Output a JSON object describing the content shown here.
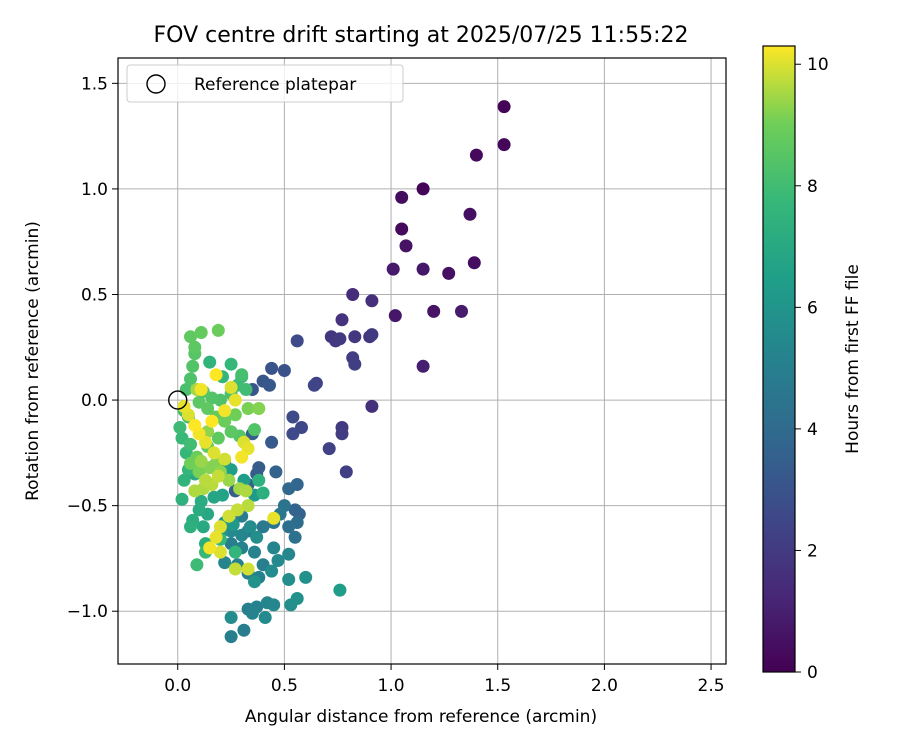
{
  "chart_data": {
    "type": "scatter",
    "title": "FOV centre drift starting at 2025/07/25 11:55:22",
    "xlabel": "Angular distance from reference (arcmin)",
    "ylabel": "Rotation from reference (arcmin)",
    "xlim": [
      -0.28,
      2.57
    ],
    "ylim": [
      -1.25,
      1.62
    ],
    "xticks": [
      {
        "value": 0.0,
        "label": "0.0"
      },
      {
        "value": 0.5,
        "label": "0.5"
      },
      {
        "value": 1.0,
        "label": "1.0"
      },
      {
        "value": 1.5,
        "label": "1.5"
      },
      {
        "value": 2.0,
        "label": "2.0"
      },
      {
        "value": 2.5,
        "label": "2.5"
      }
    ],
    "yticks": [
      {
        "value": -1.0,
        "label": "−1.0"
      },
      {
        "value": -0.5,
        "label": "−0.5"
      },
      {
        "value": 0.0,
        "label": "0.0"
      },
      {
        "value": 0.5,
        "label": "0.5"
      },
      {
        "value": 1.0,
        "label": "1.0"
      },
      {
        "value": 1.5,
        "label": "1.5"
      }
    ],
    "grid": true,
    "legend": {
      "placement": "top-left",
      "entries": [
        {
          "label": "Reference platepar",
          "marker": "open-circle"
        }
      ]
    },
    "reference_point": {
      "x": 0.0,
      "y": 0.0
    },
    "colorbar": {
      "label": "Hours from first FF file",
      "colormap": "viridis",
      "range": [
        0,
        10.3
      ],
      "ticks": [
        {
          "value": 0,
          "label": "0"
        },
        {
          "value": 2,
          "label": "2"
        },
        {
          "value": 4,
          "label": "4"
        },
        {
          "value": 6,
          "label": "6"
        },
        {
          "value": 8,
          "label": "8"
        },
        {
          "value": 10,
          "label": "10"
        }
      ]
    },
    "points": [
      [
        1.53,
        1.39,
        0.1
      ],
      [
        1.53,
        1.21,
        0.2
      ],
      [
        1.4,
        1.16,
        0.3
      ],
      [
        1.15,
        1.0,
        0.1
      ],
      [
        1.05,
        0.96,
        0.4
      ],
      [
        1.37,
        0.88,
        0.5
      ],
      [
        1.05,
        0.81,
        0.3
      ],
      [
        1.07,
        0.73,
        0.6
      ],
      [
        1.39,
        0.65,
        0.4
      ],
      [
        1.15,
        0.62,
        0.7
      ],
      [
        1.27,
        0.6,
        0.5
      ],
      [
        1.01,
        0.62,
        0.8
      ],
      [
        1.2,
        0.42,
        0.6
      ],
      [
        1.33,
        0.42,
        0.9
      ],
      [
        1.02,
        0.4,
        0.7
      ],
      [
        1.15,
        0.16,
        1.0
      ],
      [
        0.82,
        0.5,
        1.5
      ],
      [
        0.91,
        0.47,
        1.6
      ],
      [
        0.77,
        0.38,
        1.7
      ],
      [
        0.72,
        0.3,
        1.8
      ],
      [
        0.74,
        0.28,
        1.9
      ],
      [
        0.76,
        0.29,
        2.0
      ],
      [
        0.83,
        0.3,
        1.9
      ],
      [
        0.9,
        0.3,
        1.8
      ],
      [
        0.91,
        0.31,
        2.0
      ],
      [
        0.82,
        0.2,
        2.1
      ],
      [
        0.83,
        0.17,
        2.2
      ],
      [
        0.56,
        0.28,
        2.6
      ],
      [
        0.65,
        0.08,
        2.3
      ],
      [
        0.64,
        0.07,
        2.4
      ],
      [
        0.91,
        -0.03,
        1.6
      ],
      [
        0.77,
        -0.13,
        2.0
      ],
      [
        0.77,
        -0.16,
        2.1
      ],
      [
        0.71,
        -0.23,
        2.3
      ],
      [
        0.79,
        -0.34,
        2.2
      ],
      [
        0.58,
        -0.13,
        2.5
      ],
      [
        0.54,
        -0.08,
        2.7
      ],
      [
        0.54,
        -0.16,
        2.6
      ],
      [
        0.5,
        0.14,
        2.9
      ],
      [
        0.44,
        0.15,
        3.0
      ],
      [
        0.4,
        0.09,
        3.1
      ],
      [
        0.43,
        0.07,
        3.2
      ],
      [
        0.35,
        0.05,
        3.1
      ],
      [
        0.44,
        -0.2,
        3.3
      ],
      [
        0.35,
        -0.16,
        3.5
      ],
      [
        0.46,
        -0.34,
        3.6
      ],
      [
        0.38,
        -0.32,
        3.4
      ],
      [
        0.37,
        -0.35,
        3.3
      ],
      [
        0.33,
        -0.4,
        3.7
      ],
      [
        0.27,
        -0.43,
        3.5
      ],
      [
        0.52,
        -0.42,
        3.9
      ],
      [
        0.56,
        -0.4,
        3.8
      ],
      [
        0.55,
        -0.52,
        3.7
      ],
      [
        0.57,
        -0.54,
        3.6
      ],
      [
        0.56,
        -0.58,
        4.1
      ],
      [
        0.52,
        -0.6,
        4.2
      ],
      [
        0.55,
        -0.65,
        4.3
      ],
      [
        0.5,
        -0.5,
        4.4
      ],
      [
        0.48,
        -0.54,
        4.6
      ],
      [
        0.45,
        -0.58,
        4.5
      ],
      [
        0.4,
        -0.6,
        4.7
      ],
      [
        0.33,
        -0.62,
        4.8
      ],
      [
        0.3,
        -0.55,
        4.9
      ],
      [
        0.25,
        -0.68,
        5.0
      ],
      [
        0.3,
        -0.7,
        5.1
      ],
      [
        0.36,
        -0.72,
        5.2
      ],
      [
        0.45,
        -0.7,
        5.3
      ],
      [
        0.52,
        -0.73,
        5.4
      ],
      [
        0.47,
        -0.76,
        5.5
      ],
      [
        0.4,
        -0.78,
        5.0
      ],
      [
        0.33,
        -0.82,
        4.9
      ],
      [
        0.38,
        -0.84,
        5.1
      ],
      [
        0.44,
        -0.81,
        5.6
      ],
      [
        0.52,
        -0.85,
        5.7
      ],
      [
        0.6,
        -0.84,
        5.8
      ],
      [
        0.36,
        -0.86,
        5.9
      ],
      [
        0.28,
        -0.78,
        5.2
      ],
      [
        0.22,
        -0.77,
        5.3
      ],
      [
        0.3,
        -0.64,
        5.4
      ],
      [
        0.25,
        -0.62,
        5.5
      ],
      [
        0.34,
        -0.6,
        5.6
      ],
      [
        0.37,
        -0.65,
        5.7
      ],
      [
        0.22,
        -0.58,
        6.0
      ],
      [
        0.2,
        -0.63,
        6.1
      ],
      [
        0.26,
        -0.59,
        6.2
      ],
      [
        0.33,
        -0.99,
        5.0
      ],
      [
        0.37,
        -0.98,
        5.1
      ],
      [
        0.35,
        -1.01,
        5.2
      ],
      [
        0.42,
        -0.96,
        5.3
      ],
      [
        0.45,
        -0.97,
        5.4
      ],
      [
        0.41,
        -1.03,
        5.5
      ],
      [
        0.25,
        -1.03,
        5.6
      ],
      [
        0.31,
        -1.09,
        4.9
      ],
      [
        0.25,
        -1.12,
        5.0
      ],
      [
        0.53,
        -0.97,
        5.7
      ],
      [
        0.56,
        -0.94,
        5.8
      ],
      [
        0.76,
        -0.9,
        6.4
      ],
      [
        0.36,
        -0.45,
        6.3
      ],
      [
        0.31,
        -0.38,
        6.4
      ],
      [
        0.25,
        -0.33,
        6.5
      ],
      [
        0.22,
        -0.3,
        6.6
      ],
      [
        0.21,
        -0.45,
        6.7
      ],
      [
        0.17,
        -0.46,
        6.8
      ],
      [
        0.14,
        -0.54,
        6.9
      ],
      [
        0.12,
        -0.6,
        7.0
      ],
      [
        0.1,
        -0.52,
        7.1
      ],
      [
        0.07,
        -0.57,
        7.2
      ],
      [
        0.06,
        -0.6,
        7.3
      ],
      [
        0.02,
        -0.47,
        7.4
      ],
      [
        0.03,
        -0.38,
        7.5
      ],
      [
        0.05,
        -0.33,
        7.6
      ],
      [
        0.04,
        -0.25,
        7.7
      ],
      [
        0.02,
        -0.18,
        7.8
      ],
      [
        0.01,
        -0.13,
        7.9
      ],
      [
        0.05,
        -0.08,
        8.0
      ],
      [
        0.03,
        -0.05,
        8.1
      ],
      [
        0.04,
        0.05,
        8.2
      ],
      [
        0.06,
        0.1,
        8.3
      ],
      [
        0.07,
        0.16,
        8.4
      ],
      [
        0.08,
        0.22,
        8.5
      ],
      [
        0.08,
        0.25,
        8.6
      ],
      [
        0.06,
        0.3,
        8.7
      ],
      [
        0.11,
        0.32,
        8.8
      ],
      [
        0.19,
        0.33,
        8.9
      ],
      [
        0.15,
        0.18,
        7.5
      ],
      [
        0.21,
        0.11,
        7.6
      ],
      [
        0.25,
        0.17,
        7.7
      ],
      [
        0.3,
        0.11,
        7.8
      ],
      [
        0.28,
        0.07,
        7.9
      ],
      [
        0.32,
        0.05,
        8.0
      ],
      [
        0.3,
        0.12,
        8.1
      ],
      [
        0.25,
        0.03,
        8.2
      ],
      [
        0.2,
        0.0,
        8.3
      ],
      [
        0.16,
        0.01,
        8.4
      ],
      [
        0.12,
        0.04,
        8.5
      ],
      [
        0.1,
        -0.01,
        8.6
      ],
      [
        0.14,
        -0.04,
        8.7
      ],
      [
        0.18,
        -0.08,
        8.8
      ],
      [
        0.22,
        -0.1,
        8.9
      ],
      [
        0.27,
        -0.07,
        9.0
      ],
      [
        0.33,
        -0.04,
        9.1
      ],
      [
        0.38,
        -0.04,
        9.2
      ],
      [
        0.36,
        -0.14,
        8.4
      ],
      [
        0.29,
        -0.17,
        8.5
      ],
      [
        0.25,
        -0.15,
        8.6
      ],
      [
        0.19,
        -0.18,
        8.7
      ],
      [
        0.14,
        -0.22,
        8.8
      ],
      [
        0.09,
        -0.27,
        8.9
      ],
      [
        0.06,
        -0.3,
        9.0
      ],
      [
        0.1,
        -0.34,
        9.1
      ],
      [
        0.15,
        -0.32,
        9.2
      ],
      [
        0.2,
        -0.34,
        9.3
      ],
      [
        0.24,
        -0.38,
        9.4
      ],
      [
        0.29,
        -0.42,
        9.5
      ],
      [
        0.32,
        -0.43,
        9.6
      ],
      [
        0.33,
        -0.5,
        9.7
      ],
      [
        0.28,
        -0.52,
        9.8
      ],
      [
        0.24,
        -0.55,
        9.9
      ],
      [
        0.2,
        -0.6,
        10.0
      ],
      [
        0.18,
        -0.65,
        10.1
      ],
      [
        0.15,
        -0.7,
        10.2
      ],
      [
        0.2,
        -0.72,
        10.0
      ],
      [
        0.27,
        -0.8,
        9.8
      ],
      [
        0.33,
        -0.8,
        9.9
      ],
      [
        0.45,
        -0.56,
        10.1
      ],
      [
        0.12,
        -0.42,
        9.6
      ],
      [
        0.16,
        -0.4,
        9.7
      ],
      [
        0.19,
        -0.36,
        9.8
      ],
      [
        0.22,
        -0.28,
        9.9
      ],
      [
        0.17,
        -0.25,
        10.0
      ],
      [
        0.13,
        -0.2,
        10.1
      ],
      [
        0.1,
        -0.16,
        10.2
      ],
      [
        0.08,
        -0.12,
        10.3
      ],
      [
        0.05,
        -0.07,
        10.0
      ],
      [
        0.03,
        -0.03,
        10.1
      ],
      [
        0.11,
        0.05,
        10.2
      ],
      [
        0.18,
        0.12,
        10.3
      ],
      [
        0.25,
        0.06,
        10.0
      ],
      [
        0.27,
        0.0,
        10.1
      ],
      [
        0.22,
        -0.05,
        10.2
      ],
      [
        0.16,
        -0.1,
        10.3
      ],
      [
        0.31,
        -0.2,
        10.0
      ],
      [
        0.33,
        -0.23,
        10.1
      ],
      [
        0.3,
        -0.27,
        10.2
      ],
      [
        0.09,
        0.05,
        9.5
      ],
      [
        0.08,
        -0.43,
        9.6
      ],
      [
        0.13,
        -0.38,
        9.7
      ],
      [
        0.11,
        -0.29,
        9.4
      ],
      [
        0.14,
        -0.15,
        9.3
      ],
      [
        0.18,
        -0.3,
        9.2
      ],
      [
        0.06,
        -0.21,
        8.0
      ],
      [
        0.09,
        -0.78,
        7.9
      ],
      [
        0.13,
        -0.72,
        7.8
      ],
      [
        0.2,
        -0.66,
        7.7
      ],
      [
        0.27,
        -0.72,
        7.6
      ],
      [
        0.38,
        -0.38,
        7.4
      ],
      [
        0.4,
        -0.44,
        7.3
      ],
      [
        0.13,
        -0.68,
        7.2
      ],
      [
        0.11,
        -0.48,
        7.1
      ],
      [
        0.08,
        -0.35,
        7.0
      ]
    ]
  }
}
